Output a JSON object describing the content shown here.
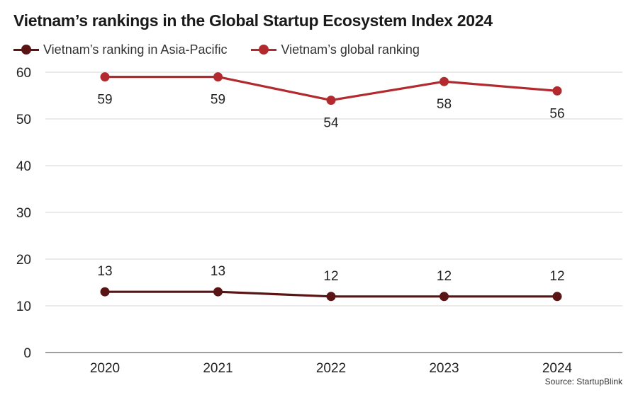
{
  "chart_data": {
    "type": "line",
    "title": "Vietnam’s rankings in the Global Startup Ecosystem Index 2024",
    "categories": [
      "2020",
      "2021",
      "2022",
      "2023",
      "2024"
    ],
    "series": [
      {
        "name": "Vietnam’s ranking in Asia-Pacific",
        "values": [
          13,
          13,
          12,
          12,
          12
        ],
        "color": "#5a1414"
      },
      {
        "name": "Vietnam’s global ranking",
        "values": [
          59,
          59,
          54,
          58,
          56
        ],
        "color": "#b22a2e"
      }
    ],
    "xlabel": "",
    "ylabel": "",
    "ylim": [
      0,
      60
    ],
    "yticks": [
      0,
      10,
      20,
      30,
      40,
      50,
      60
    ],
    "grid": true,
    "legend": "top-left",
    "source": "Source: StartupBlink"
  }
}
